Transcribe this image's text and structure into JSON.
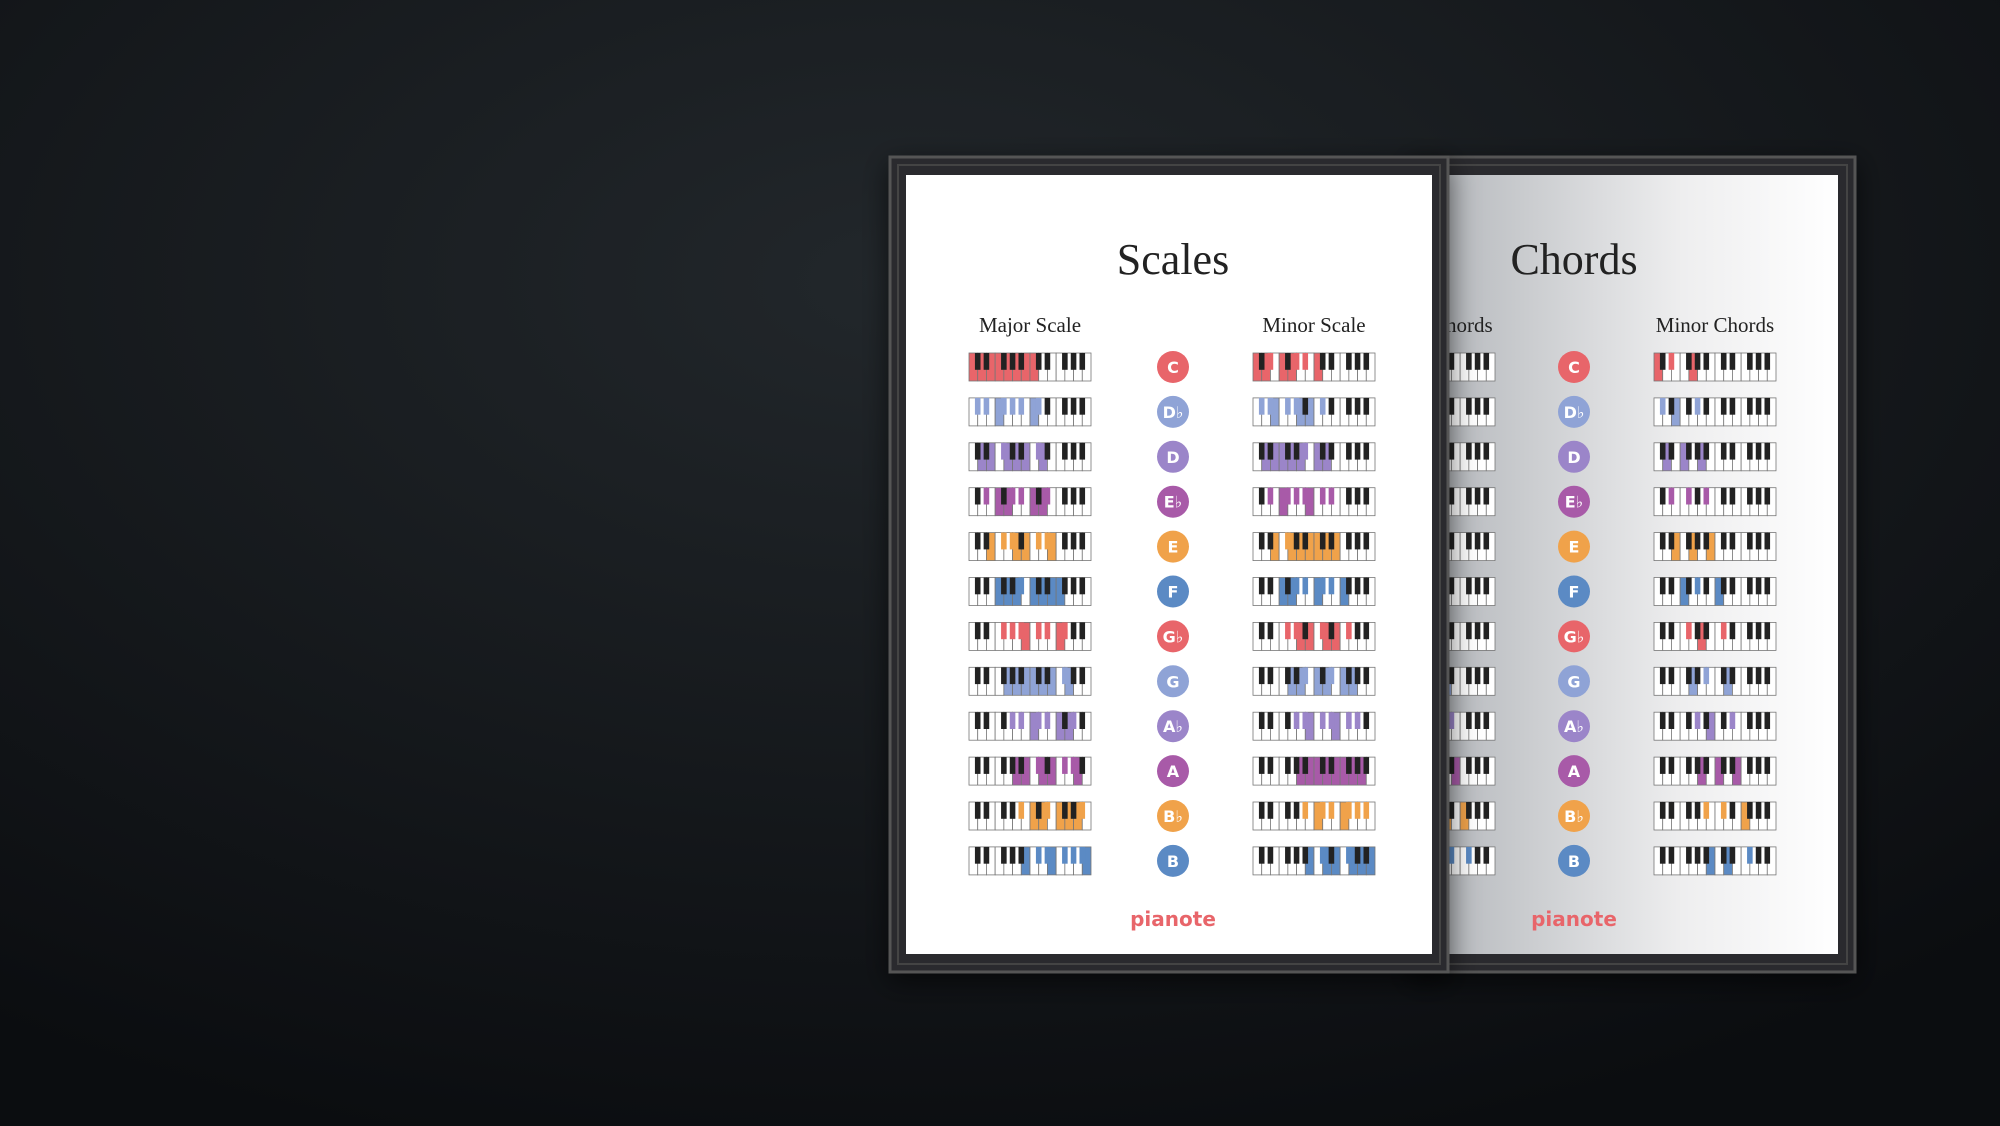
{
  "scales": {
    "title": "Scales",
    "major_heading": "Major Scale",
    "minor_heading": "Minor Scale",
    "logo": "pianote",
    "keys": [
      {
        "label": "C",
        "color": "#e8656a"
      },
      {
        "label": "D♭",
        "color": "#8fa3d6"
      },
      {
        "label": "D",
        "color": "#9b85c9"
      },
      {
        "label": "E♭",
        "color": "#a85aa8"
      },
      {
        "label": "E",
        "color": "#f0a24a"
      },
      {
        "label": "F",
        "color": "#5b8ac4"
      },
      {
        "label": "G♭",
        "color": "#e8656a"
      },
      {
        "label": "G",
        "color": "#8fa3d6"
      },
      {
        "label": "A♭",
        "color": "#9b85c9"
      },
      {
        "label": "A",
        "color": "#a85aa8"
      },
      {
        "label": "B♭",
        "color": "#f0a24a"
      },
      {
        "label": "B",
        "color": "#5b8ac4"
      }
    ]
  },
  "chords": {
    "title": "Chords",
    "major_heading": "Major Chords",
    "minor_heading": "Minor Chords",
    "logo": "pianote",
    "keys": [
      {
        "label": "C",
        "color": "#e8656a"
      },
      {
        "label": "D♭",
        "color": "#8fa3d6"
      },
      {
        "label": "D",
        "color": "#9b85c9"
      },
      {
        "label": "E♭",
        "color": "#a85aa8"
      },
      {
        "label": "E",
        "color": "#f0a24a"
      },
      {
        "label": "F",
        "color": "#5b8ac4"
      },
      {
        "label": "G♭",
        "color": "#e8656a"
      },
      {
        "label": "G",
        "color": "#8fa3d6"
      },
      {
        "label": "A♭",
        "color": "#9b85c9"
      },
      {
        "label": "A",
        "color": "#a85aa8"
      },
      {
        "label": "B♭",
        "color": "#f0a24a"
      },
      {
        "label": "B",
        "color": "#5b8ac4"
      }
    ]
  }
}
